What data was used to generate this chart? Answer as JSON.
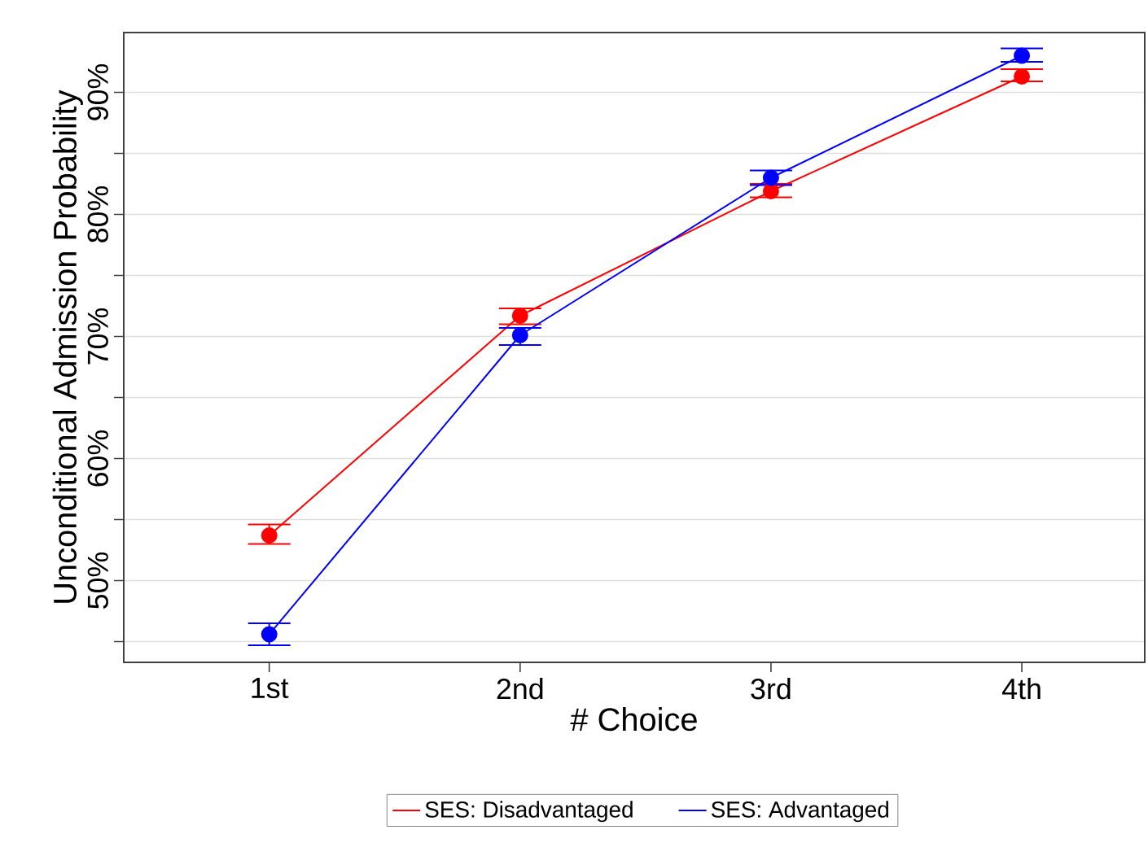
{
  "chart_data": {
    "type": "line",
    "xlabel": "# Choice",
    "ylabel": "Unconditional Admission Probability",
    "categories": [
      "1st",
      "2nd",
      "3rd",
      "4th"
    ],
    "series": [
      {
        "name": "SES: Disadvantaged",
        "color": "#ff0000",
        "values": [
          53.7,
          71.7,
          81.9,
          91.3
        ],
        "errors": [
          [
            53.0,
            54.6
          ],
          [
            71.0,
            72.3
          ],
          [
            81.4,
            82.5
          ],
          [
            90.9,
            91.9
          ]
        ]
      },
      {
        "name": "SES: Advantaged",
        "color": "#0000ff",
        "values": [
          45.6,
          70.1,
          83.0,
          93.0
        ],
        "errors": [
          [
            44.7,
            46.5
          ],
          [
            69.3,
            70.7
          ],
          [
            82.4,
            83.6
          ],
          [
            92.5,
            93.6
          ]
        ]
      }
    ],
    "ylim": [
      43.3,
      94.9
    ],
    "yticks": [
      {
        "value": 45,
        "label": null
      },
      {
        "value": 50,
        "label": "50%"
      },
      {
        "value": 55,
        "label": null
      },
      {
        "value": 60,
        "label": "60%"
      },
      {
        "value": 65,
        "label": null
      },
      {
        "value": 70,
        "label": "70%"
      },
      {
        "value": 75,
        "label": null
      },
      {
        "value": 80,
        "label": "80%"
      },
      {
        "value": 85,
        "label": null
      },
      {
        "value": 90,
        "label": "90%"
      }
    ],
    "grid": "y",
    "legend": "bottom",
    "marker": "circle",
    "line_style": "solid"
  }
}
